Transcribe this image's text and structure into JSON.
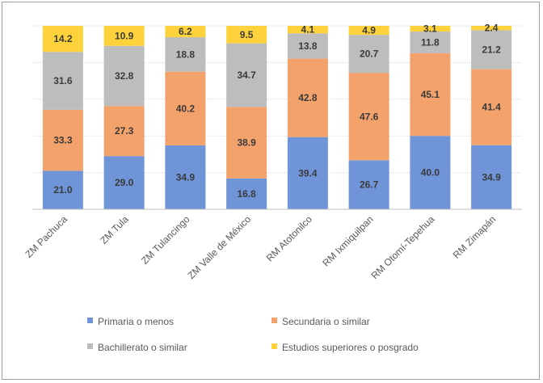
{
  "chart_data": {
    "type": "bar",
    "stacked": true,
    "categories": [
      "ZM Pachuca",
      "ZM Tula",
      "ZM Tulancingo",
      "ZM Valle de México",
      "RM Atotonilco",
      "RM Ixmiquilpan",
      "RM Otomí-Tepehua",
      "RM Zimapán"
    ],
    "series": [
      {
        "name": "Primaria o menos",
        "color": "#6f95d8",
        "values": [
          21.0,
          29.0,
          34.9,
          16.8,
          39.4,
          26.7,
          40.0,
          34.9
        ]
      },
      {
        "name": "Secundaria o similar",
        "color": "#f4a26c",
        "values": [
          33.3,
          27.3,
          40.2,
          38.9,
          42.8,
          47.6,
          45.1,
          41.4
        ]
      },
      {
        "name": "Bachillerato o similar",
        "color": "#bdbdbd",
        "values": [
          31.6,
          32.8,
          18.8,
          34.7,
          13.8,
          20.7,
          11.8,
          21.2
        ]
      },
      {
        "name": "Estudios superiores o posgrado",
        "color": "#fdd23b",
        "values": [
          14.2,
          10.9,
          6.2,
          9.5,
          4.1,
          4.9,
          3.1,
          2.4
        ]
      }
    ],
    "ylim": [
      0,
      100
    ],
    "grid": true,
    "legend": "bottom",
    "title": "",
    "xlabel": "",
    "ylabel": ""
  }
}
